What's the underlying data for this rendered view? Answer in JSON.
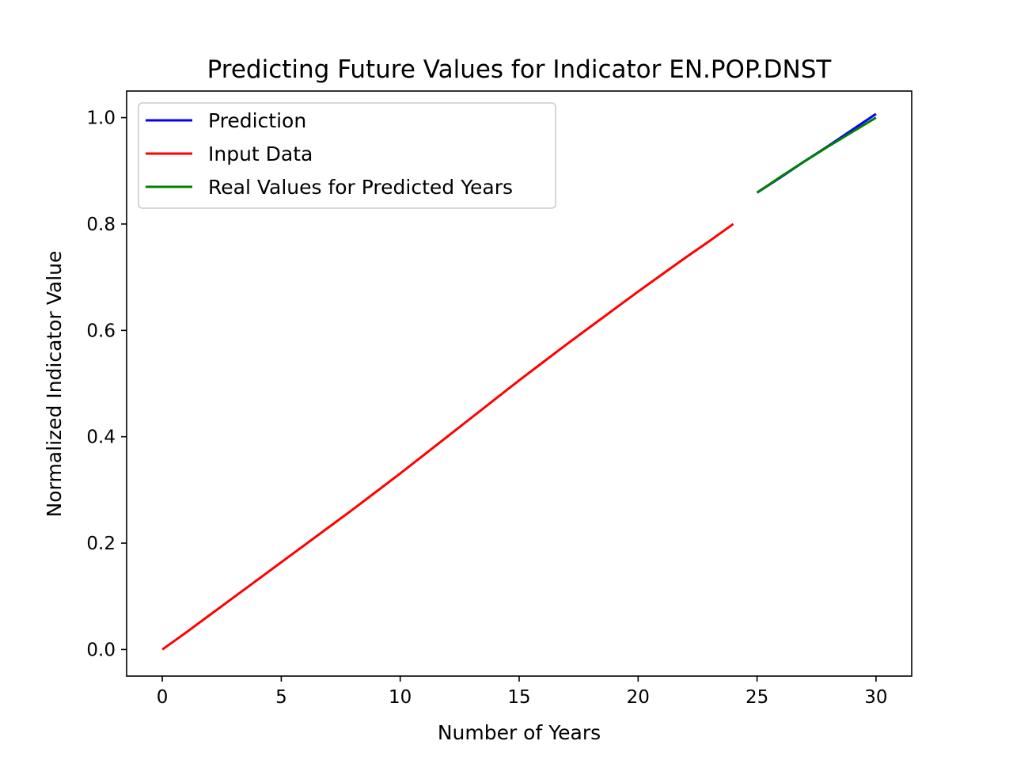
{
  "chart_data": {
    "type": "line",
    "title": "Predicting Future Values for Indicator EN.POP.DNST",
    "xlabel": "Number of Years",
    "ylabel": "Normalized Indicator Value",
    "xlim": [
      -1.5,
      31.5
    ],
    "ylim": [
      -0.05,
      1.05
    ],
    "xticks": [
      0,
      5,
      10,
      15,
      20,
      25,
      30
    ],
    "yticks": [
      0.0,
      0.2,
      0.4,
      0.6,
      0.8,
      1.0
    ],
    "xtick_labels": [
      "0",
      "5",
      "10",
      "15",
      "20",
      "25",
      "30"
    ],
    "ytick_labels": [
      "0.0",
      "0.2",
      "0.4",
      "0.6",
      "0.8",
      "1.0"
    ],
    "grid": false,
    "legend_position": "top-left",
    "series": [
      {
        "name": "Prediction",
        "color": "#0000ff",
        "x": [
          25,
          26,
          27,
          28,
          29,
          30
        ],
        "y": [
          0.859,
          0.888,
          0.918,
          0.947,
          0.977,
          1.007
        ]
      },
      {
        "name": "Input Data",
        "color": "#ff0000",
        "x": [
          0,
          1,
          2,
          3,
          4,
          5,
          6,
          7,
          8,
          9,
          10,
          11,
          12,
          13,
          14,
          15,
          16,
          17,
          18,
          19,
          20,
          21,
          22,
          23,
          24
        ],
        "y": [
          0.0,
          0.032,
          0.065,
          0.098,
          0.131,
          0.164,
          0.197,
          0.23,
          0.263,
          0.297,
          0.331,
          0.366,
          0.401,
          0.436,
          0.471,
          0.506,
          0.54,
          0.574,
          0.607,
          0.64,
          0.673,
          0.705,
          0.737,
          0.768,
          0.8
        ]
      },
      {
        "name": "Real Values for Predicted Years",
        "color": "#008000",
        "x": [
          25,
          26,
          27,
          28,
          29,
          30
        ],
        "y": [
          0.859,
          0.889,
          0.918,
          0.946,
          0.973,
          1.0
        ]
      }
    ]
  }
}
